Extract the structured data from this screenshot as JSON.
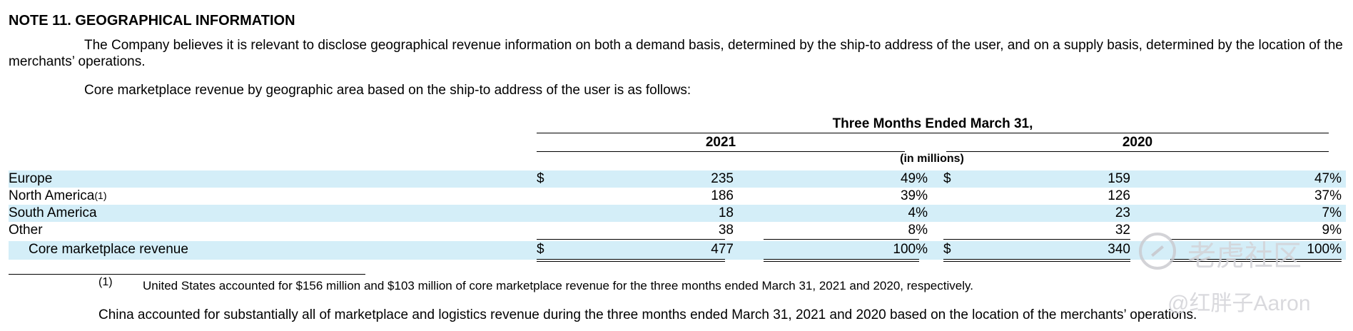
{
  "note_title": "NOTE 11. GEOGRAPHICAL INFORMATION",
  "paragraph": "The Company believes it is relevant to disclose geographical revenue information on both a demand basis, determined by the ship-to address of the user, and on a supply basis, determined by the location of the merchants’ operations.",
  "intro": "Core marketplace revenue by geographic area based on the ship-to address of the user is as follows:",
  "table": {
    "period_header": "Three Months Ended March 31,",
    "years": [
      "2021",
      "2020"
    ],
    "units": "(in millions)",
    "currency": "$",
    "rows": [
      {
        "label": "Europe",
        "footnote": "",
        "v2021": "235",
        "p2021": "49%",
        "v2020": "159",
        "p2020": "47%",
        "dollar": true
      },
      {
        "label": "North America",
        "footnote": "(1)",
        "v2021": "186",
        "p2021": "39%",
        "v2020": "126",
        "p2020": "37%",
        "dollar": false
      },
      {
        "label": "South America",
        "footnote": "",
        "v2021": "18",
        "p2021": "4%",
        "v2020": "23",
        "p2020": "7%",
        "dollar": false
      },
      {
        "label": "Other",
        "footnote": "",
        "v2021": "38",
        "p2021": "8%",
        "v2020": "32",
        "p2020": "9%",
        "dollar": false
      }
    ],
    "total": {
      "label": "Core marketplace revenue",
      "v2021": "477",
      "p2021": "100%",
      "v2020": "340",
      "p2020": "100%"
    }
  },
  "footnote": {
    "marker": "(1)",
    "text": "United States accounted for $156 million and $103 million of core marketplace revenue for the three months ended March 31, 2021 and 2020, respectively."
  },
  "china_note": "China accounted for substantially all of marketplace and logistics revenue during the three months ended March 31, 2021 and 2020 based on the location of the merchants’ operations.",
  "watermark": {
    "site": "老虎社区",
    "author": "@红胖子Aaron"
  },
  "colors": {
    "row_shade": "#d4eef8",
    "text": "#000000"
  }
}
